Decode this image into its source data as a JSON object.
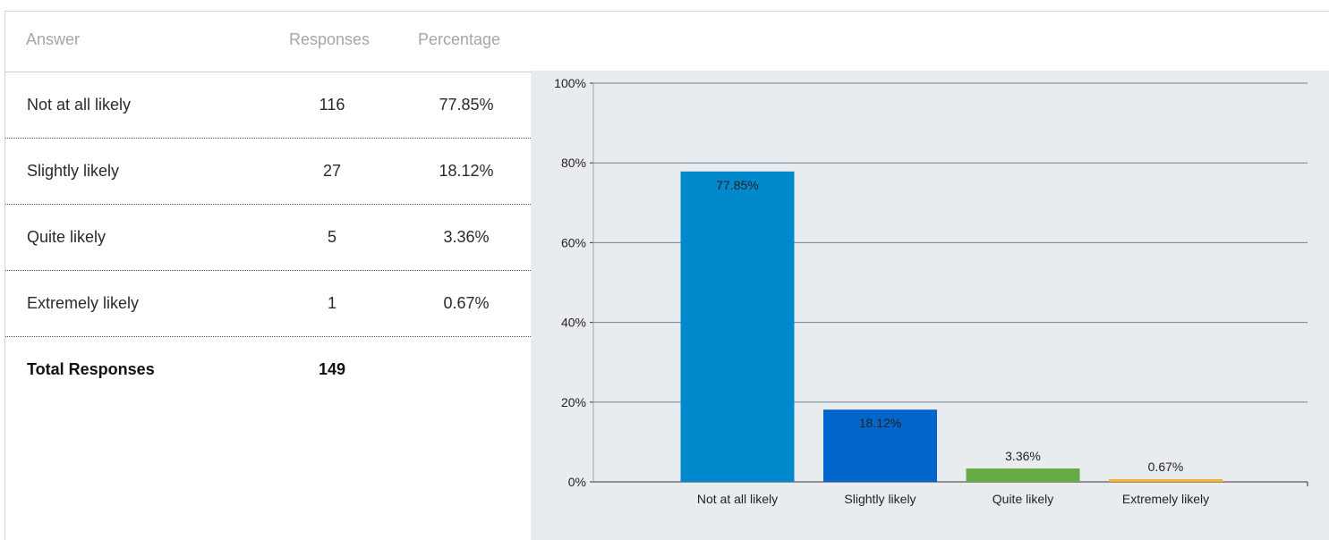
{
  "table": {
    "headers": {
      "answer": "Answer",
      "responses": "Responses",
      "percentage": "Percentage"
    },
    "rows": [
      {
        "answer": "Not at all likely",
        "responses": "116",
        "percentage": "77.85%"
      },
      {
        "answer": "Slightly likely",
        "responses": "27",
        "percentage": "18.12%"
      },
      {
        "answer": "Quite likely",
        "responses": "5",
        "percentage": "3.36%"
      },
      {
        "answer": "Extremely likely",
        "responses": "1",
        "percentage": "0.67%"
      }
    ],
    "total": {
      "label": "Total Responses",
      "value": "149"
    }
  },
  "chart_data": {
    "type": "bar",
    "categories": [
      "Not at all likely",
      "Slightly likely",
      "Quite likely",
      "Extremely likely"
    ],
    "values": [
      77.85,
      18.12,
      3.36,
      0.67
    ],
    "data_labels": [
      "77.85%",
      "18.12%",
      "3.36%",
      "0.67%"
    ],
    "colors": [
      "#0088cc",
      "#0066cc",
      "#66aa44",
      "#f0b030"
    ],
    "yticks": [
      "0%",
      "20%",
      "40%",
      "60%",
      "80%",
      "100%"
    ],
    "ylim": [
      0,
      100
    ],
    "grid": true,
    "background": "#e9ecef",
    "title": "",
    "xlabel": "",
    "ylabel": ""
  }
}
